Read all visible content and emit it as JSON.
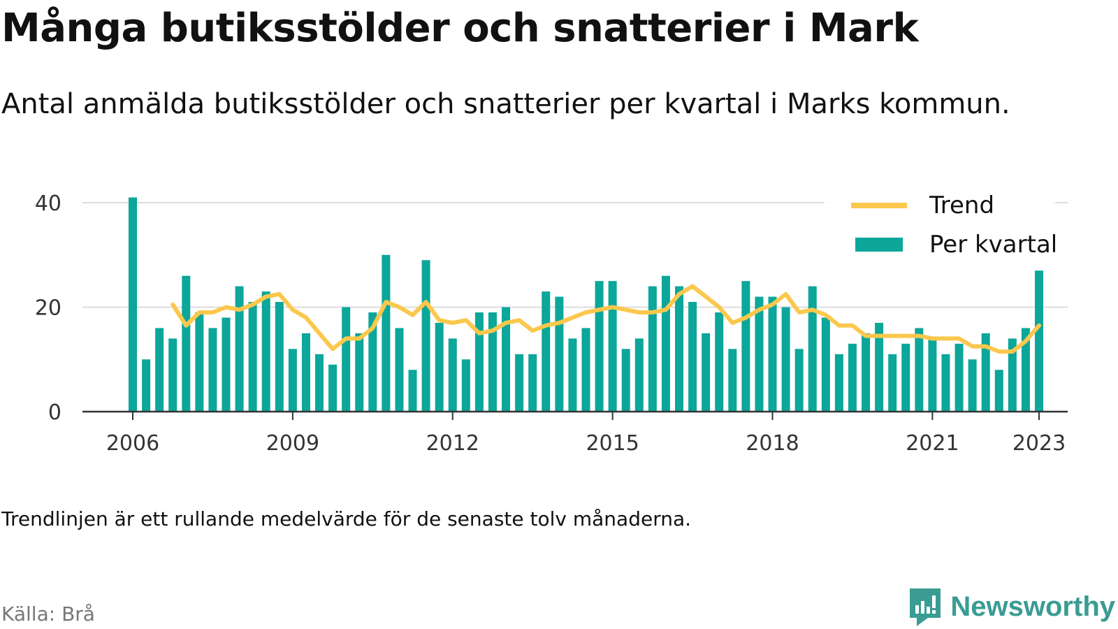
{
  "title": "Många butiksstölder och snatterier i Mark",
  "subtitle": "Antal anmälda butiksstölder och snatterier per kvartal i Marks kommun.",
  "footnote": "Trendlinjen är ett rullande medelvärde för de senaste tolv månaderna.",
  "source": "Källa: Brå",
  "brand": {
    "name": "Newsworthy",
    "icon": "newsworthy-logo-icon"
  },
  "colors": {
    "bars": "#0ca69a",
    "trend": "#fbc84d",
    "grid": "#dddddd",
    "axis": "#333333",
    "brand": "#3a9c93"
  },
  "chart_data": {
    "type": "bar",
    "title": "Många butiksstölder och snatterier i Mark",
    "ylim": [
      0,
      40
    ],
    "yticks": [
      0,
      20,
      40
    ],
    "xticks": [
      {
        "label": "2006",
        "x": 2006.0
      },
      {
        "label": "2009",
        "x": 2009.0
      },
      {
        "label": "2012",
        "x": 2012.0
      },
      {
        "label": "2015",
        "x": 2015.0
      },
      {
        "label": "2018",
        "x": 2018.0
      },
      {
        "label": "2021",
        "x": 2021.0
      },
      {
        "label": "2023",
        "x": 2023.0
      }
    ],
    "grid": true,
    "legend": {
      "position": "top-right",
      "entries": [
        "Trend",
        "Per kvartal"
      ]
    },
    "series": [
      {
        "name": "Per kvartal",
        "type": "bar",
        "x": [
          2006.0,
          2006.25,
          2006.5,
          2006.75,
          2007.0,
          2007.25,
          2007.5,
          2007.75,
          2008.0,
          2008.25,
          2008.5,
          2008.75,
          2009.0,
          2009.25,
          2009.5,
          2009.75,
          2010.0,
          2010.25,
          2010.5,
          2010.75,
          2011.0,
          2011.25,
          2011.5,
          2011.75,
          2012.0,
          2012.25,
          2012.5,
          2012.75,
          2013.0,
          2013.25,
          2013.5,
          2013.75,
          2014.0,
          2014.25,
          2014.5,
          2014.75,
          2015.0,
          2015.25,
          2015.5,
          2015.75,
          2016.0,
          2016.25,
          2016.5,
          2016.75,
          2017.0,
          2017.25,
          2017.5,
          2017.75,
          2018.0,
          2018.25,
          2018.5,
          2018.75,
          2019.0,
          2019.25,
          2019.5,
          2019.75,
          2020.0,
          2020.25,
          2020.5,
          2020.75,
          2021.0,
          2021.25,
          2021.5,
          2021.75,
          2022.0,
          2022.25,
          2022.5,
          2022.75,
          2023.0
        ],
        "values": [
          41,
          10,
          16,
          14,
          26,
          19,
          16,
          18,
          24,
          21,
          23,
          21,
          12,
          15,
          11,
          9,
          20,
          15,
          19,
          30,
          16,
          8,
          29,
          17,
          14,
          10,
          19,
          19,
          20,
          11,
          11,
          23,
          22,
          14,
          16,
          25,
          25,
          12,
          14,
          24,
          26,
          24,
          21,
          15,
          19,
          12,
          25,
          22,
          22,
          20,
          12,
          24,
          18,
          11,
          13,
          15,
          17,
          11,
          13,
          16,
          14,
          11,
          13,
          10,
          15,
          8,
          14,
          16,
          27
        ]
      },
      {
        "name": "Trend",
        "type": "line",
        "x": [
          2006.75,
          2007.0,
          2007.25,
          2007.5,
          2007.75,
          2008.0,
          2008.25,
          2008.5,
          2008.75,
          2009.0,
          2009.25,
          2009.5,
          2009.75,
          2010.0,
          2010.25,
          2010.5,
          2010.75,
          2011.0,
          2011.25,
          2011.5,
          2011.75,
          2012.0,
          2012.25,
          2012.5,
          2012.75,
          2013.0,
          2013.25,
          2013.5,
          2013.75,
          2014.0,
          2014.25,
          2014.5,
          2014.75,
          2015.0,
          2015.25,
          2015.5,
          2015.75,
          2016.0,
          2016.25,
          2016.5,
          2016.75,
          2017.0,
          2017.25,
          2017.5,
          2017.75,
          2018.0,
          2018.25,
          2018.5,
          2018.75,
          2019.0,
          2019.25,
          2019.5,
          2019.75,
          2020.0,
          2020.25,
          2020.5,
          2020.75,
          2021.0,
          2021.25,
          2021.5,
          2021.75,
          2022.0,
          2022.25,
          2022.5,
          2022.75,
          2023.0
        ],
        "values": [
          20.5,
          16.5,
          19,
          19,
          20,
          19.5,
          20.5,
          22,
          22.5,
          19.5,
          18,
          15,
          12,
          14,
          14,
          16,
          21,
          20,
          18.5,
          21,
          17.5,
          17,
          17.5,
          15,
          15.5,
          17,
          17.5,
          15.5,
          16.5,
          17,
          18,
          19,
          19.5,
          20,
          19.5,
          19,
          19,
          19.5,
          22.5,
          24,
          22,
          20,
          17,
          18,
          19.5,
          20.5,
          22.5,
          19,
          19.5,
          18.5,
          16.5,
          16.5,
          14.5,
          14.5,
          14.5,
          14.5,
          14.5,
          14,
          14,
          14,
          12.5,
          12.5,
          11.5,
          11.5,
          13.5,
          16.5
        ]
      }
    ]
  }
}
